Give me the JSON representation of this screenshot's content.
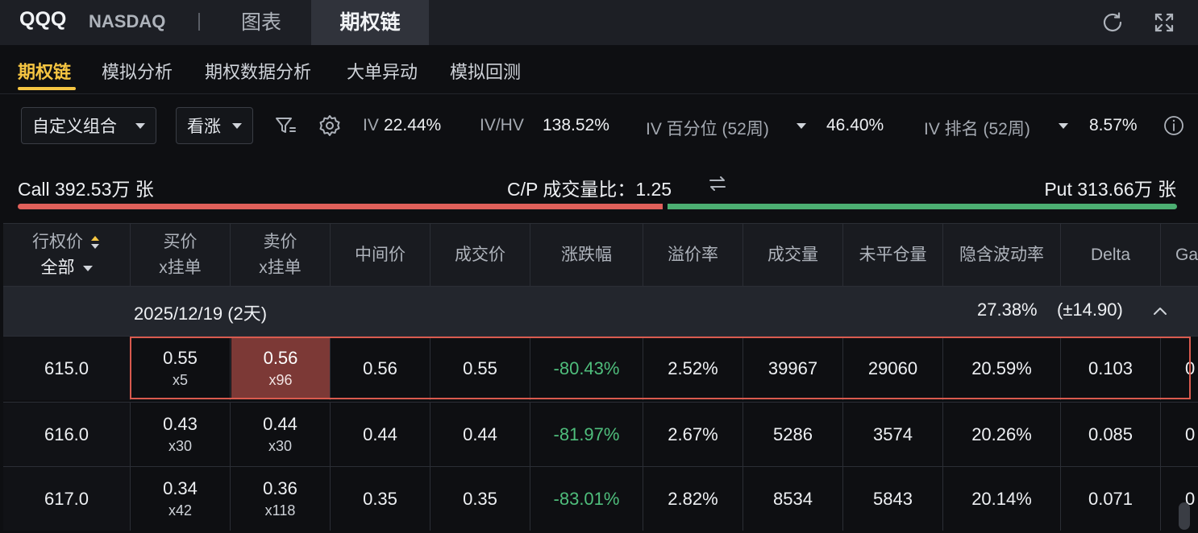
{
  "topbar": {
    "symbol": "QQQ",
    "exchange": "NASDAQ",
    "tabs": [
      {
        "label": "图表",
        "active": false
      },
      {
        "label": "期权链",
        "active": true
      }
    ],
    "icons": [
      "refresh-icon",
      "fullscreen-icon"
    ]
  },
  "subtabs": [
    {
      "label": "期权链",
      "active": true
    },
    {
      "label": "模拟分析",
      "active": false
    },
    {
      "label": "期权数据分析",
      "active": false
    },
    {
      "label": "大单异动",
      "active": false
    },
    {
      "label": "模拟回测",
      "active": false
    }
  ],
  "toolbar": {
    "combo_select": "自定义组合",
    "direction_select": "看涨",
    "iv_label": "IV",
    "iv_value": "22.44%",
    "ivhv_label": "IV/HV",
    "ivhv_value": "138.52%",
    "iv_pct_label": "IV 百分位 (52周)",
    "iv_pct_value": "46.40%",
    "iv_rank_label": "IV 排名 (52周)",
    "iv_rank_value": "8.57%"
  },
  "cp": {
    "call_text": "Call 392.53万 张",
    "ratio_text": "C/P 成交量比：1.25",
    "put_text": "Put 313.66万 张",
    "call_share": 0.556
  },
  "colors": {
    "accent": "#f5c542",
    "call": "#e0605a",
    "put": "#4caf72",
    "negative": "#4fbe7c",
    "selection": "#d95a4e"
  },
  "table": {
    "headers": {
      "strike": "行权价",
      "strike_filter": "全部",
      "bid": [
        "买价",
        "x挂单"
      ],
      "ask": [
        "卖价",
        "x挂单"
      ],
      "mid": "中间价",
      "last": "成交价",
      "change": "涨跌幅",
      "premium": "溢价率",
      "volume": "成交量",
      "oi": "未平仓量",
      "iv": "隐含波动率",
      "delta": "Delta",
      "gamma": "Ga"
    },
    "group": {
      "expiry": "2025/12/19 (2天)",
      "iv": "27.38%",
      "move": "(±14.90)"
    },
    "rows": [
      {
        "strike": "615.0",
        "bid": "0.55",
        "bid_size": "x5",
        "ask": "0.56",
        "ask_size": "x96",
        "mid": "0.56",
        "last": "0.55",
        "change": "-80.43%",
        "premium": "2.52%",
        "volume": "39967",
        "oi": "29060",
        "iv": "20.59%",
        "delta": "0.103",
        "gamma": "0"
      },
      {
        "strike": "616.0",
        "bid": "0.43",
        "bid_size": "x30",
        "ask": "0.44",
        "ask_size": "x30",
        "mid": "0.44",
        "last": "0.44",
        "change": "-81.97%",
        "premium": "2.67%",
        "volume": "5286",
        "oi": "3574",
        "iv": "20.26%",
        "delta": "0.085",
        "gamma": "0"
      },
      {
        "strike": "617.0",
        "bid": "0.34",
        "bid_size": "x42",
        "ask": "0.36",
        "ask_size": "x118",
        "mid": "0.35",
        "last": "0.35",
        "change": "-83.01%",
        "premium": "2.82%",
        "volume": "8534",
        "oi": "5843",
        "iv": "20.14%",
        "delta": "0.071",
        "gamma": "0"
      }
    ]
  }
}
